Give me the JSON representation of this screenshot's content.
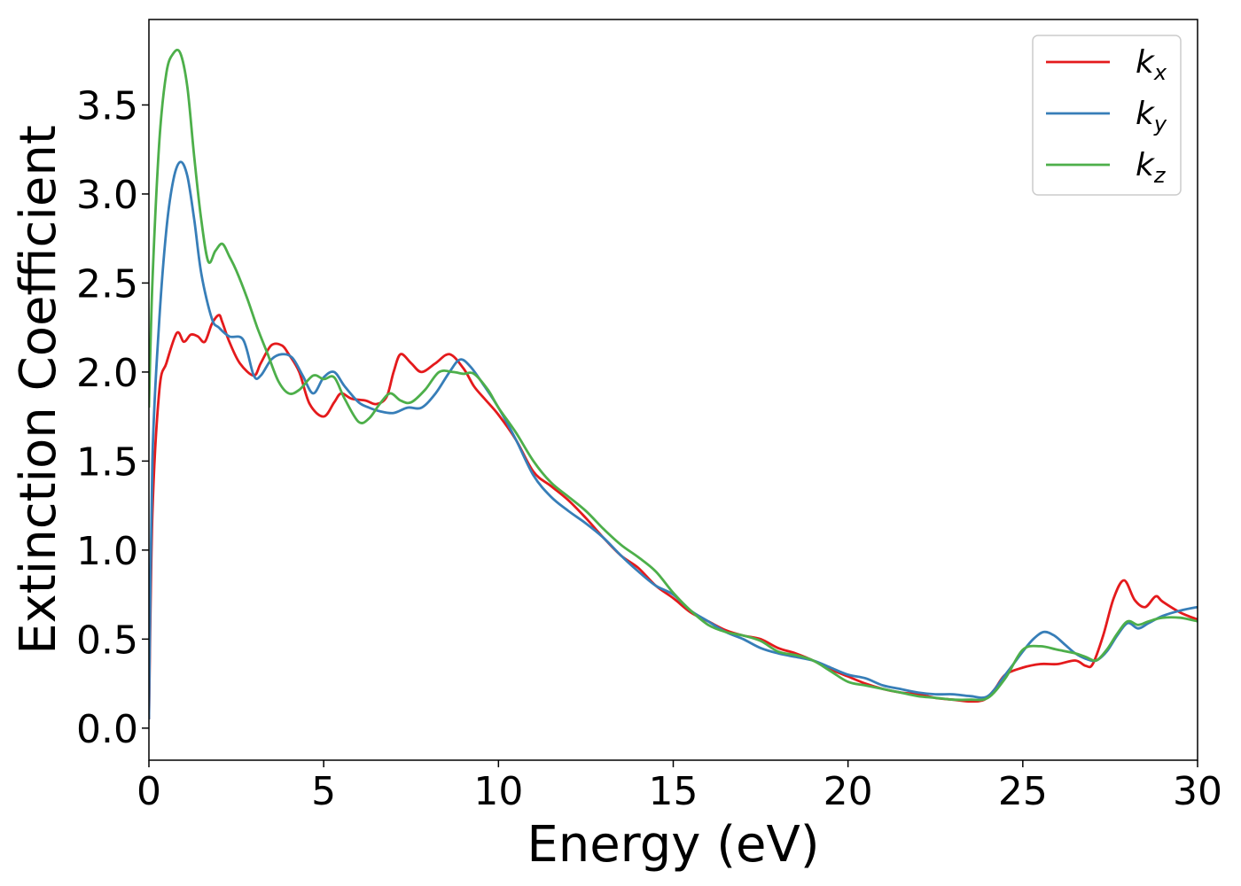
{
  "chart_data": {
    "type": "line",
    "xlabel": "Energy (eV)",
    "ylabel": "Extinction Coefficient",
    "xlim": [
      0,
      30
    ],
    "ylim": [
      -0.18,
      3.98
    ],
    "xticks": [
      0,
      5,
      10,
      15,
      20,
      25,
      30
    ],
    "xtick_labels": [
      "0",
      "5",
      "10",
      "15",
      "20",
      "25",
      "30"
    ],
    "yticks": [
      0.0,
      0.5,
      1.0,
      1.5,
      2.0,
      2.5,
      3.0,
      3.5
    ],
    "ytick_labels": [
      "0.0",
      "0.5",
      "1.0",
      "1.5",
      "2.0",
      "2.5",
      "3.0",
      "3.5"
    ],
    "grid": false,
    "legend_position": "top-right",
    "series": [
      {
        "name": "k",
        "subscript": "x",
        "color": "#e41a1c",
        "x": [
          0,
          0.1,
          0.3,
          0.5,
          0.8,
          1.0,
          1.2,
          1.4,
          1.6,
          1.8,
          2.0,
          2.1,
          2.3,
          2.6,
          3.0,
          3.2,
          3.5,
          3.8,
          4.0,
          4.3,
          4.6,
          5.0,
          5.3,
          5.5,
          5.8,
          6.2,
          6.5,
          6.8,
          7.0,
          7.2,
          7.5,
          7.8,
          8.2,
          8.6,
          9.0,
          9.3,
          9.6,
          10.0,
          10.5,
          11.0,
          11.5,
          12.0,
          12.5,
          13.0,
          13.5,
          14.0,
          14.5,
          15.0,
          15.5,
          16.0,
          16.5,
          17.0,
          17.5,
          18.0,
          18.5,
          19.0,
          19.5,
          20.0,
          20.5,
          21.0,
          21.5,
          22.0,
          22.5,
          23.0,
          23.5,
          23.9,
          24.2,
          24.5,
          25.0,
          25.5,
          26.0,
          26.5,
          26.8,
          27.0,
          27.3,
          27.6,
          27.9,
          28.2,
          28.5,
          28.8,
          29.0,
          29.5,
          30.0
        ],
        "values": [
          0.05,
          1.2,
          1.9,
          2.05,
          2.22,
          2.17,
          2.21,
          2.2,
          2.17,
          2.27,
          2.32,
          2.28,
          2.17,
          2.05,
          1.98,
          2.05,
          2.15,
          2.15,
          2.1,
          2.0,
          1.82,
          1.75,
          1.83,
          1.88,
          1.85,
          1.84,
          1.82,
          1.86,
          2.0,
          2.1,
          2.05,
          2.0,
          2.05,
          2.1,
          2.02,
          1.92,
          1.85,
          1.76,
          1.62,
          1.44,
          1.36,
          1.28,
          1.18,
          1.07,
          0.97,
          0.9,
          0.8,
          0.73,
          0.65,
          0.6,
          0.55,
          0.52,
          0.5,
          0.45,
          0.42,
          0.38,
          0.33,
          0.29,
          0.25,
          0.22,
          0.2,
          0.19,
          0.17,
          0.16,
          0.15,
          0.16,
          0.22,
          0.3,
          0.34,
          0.36,
          0.36,
          0.38,
          0.35,
          0.36,
          0.52,
          0.73,
          0.83,
          0.72,
          0.68,
          0.74,
          0.71,
          0.65,
          0.61
        ]
      },
      {
        "name": "k",
        "subscript": "y",
        "color": "#377eb8",
        "x": [
          0,
          0.1,
          0.3,
          0.5,
          0.7,
          0.9,
          1.1,
          1.3,
          1.5,
          1.8,
          2.0,
          2.3,
          2.7,
          3.0,
          3.2,
          3.5,
          3.8,
          4.1,
          4.4,
          4.7,
          5.0,
          5.3,
          5.6,
          6.0,
          6.3,
          6.6,
          7.0,
          7.4,
          7.8,
          8.2,
          8.6,
          8.9,
          9.2,
          9.6,
          10.0,
          10.5,
          11.0,
          11.5,
          12.0,
          12.5,
          13.0,
          13.5,
          14.0,
          14.5,
          15.0,
          15.5,
          16.0,
          16.5,
          17.0,
          17.5,
          18.0,
          18.5,
          19.0,
          19.5,
          20.0,
          20.5,
          21.0,
          21.5,
          22.0,
          22.5,
          23.0,
          23.5,
          24.0,
          24.5,
          25.0,
          25.3,
          25.6,
          25.9,
          26.2,
          26.5,
          26.8,
          27.1,
          27.4,
          27.7,
          28.0,
          28.3,
          28.6,
          29.0,
          29.5,
          30.0
        ],
        "values": [
          0.05,
          1.5,
          2.3,
          2.8,
          3.08,
          3.18,
          3.1,
          2.85,
          2.55,
          2.3,
          2.25,
          2.2,
          2.18,
          1.98,
          1.98,
          2.07,
          2.1,
          2.08,
          1.98,
          1.88,
          1.97,
          2.0,
          1.92,
          1.83,
          1.8,
          1.78,
          1.77,
          1.8,
          1.8,
          1.88,
          2.0,
          2.07,
          2.03,
          1.92,
          1.8,
          1.62,
          1.42,
          1.3,
          1.22,
          1.15,
          1.07,
          0.97,
          0.88,
          0.8,
          0.75,
          0.66,
          0.6,
          0.54,
          0.5,
          0.45,
          0.42,
          0.4,
          0.38,
          0.34,
          0.3,
          0.28,
          0.24,
          0.22,
          0.2,
          0.19,
          0.19,
          0.18,
          0.18,
          0.3,
          0.43,
          0.5,
          0.54,
          0.52,
          0.47,
          0.42,
          0.39,
          0.38,
          0.43,
          0.52,
          0.59,
          0.56,
          0.59,
          0.63,
          0.66,
          0.68
        ]
      },
      {
        "name": "k",
        "subscript": "z",
        "color": "#4daf4a",
        "x": [
          0,
          0.1,
          0.3,
          0.5,
          0.7,
          0.9,
          1.1,
          1.3,
          1.5,
          1.7,
          1.9,
          2.1,
          2.3,
          2.5,
          2.8,
          3.1,
          3.4,
          3.7,
          4.0,
          4.3,
          4.7,
          5.0,
          5.3,
          5.6,
          6.0,
          6.3,
          6.6,
          6.9,
          7.2,
          7.5,
          7.9,
          8.3,
          8.7,
          9.0,
          9.3,
          9.7,
          10.0,
          10.5,
          11.0,
          11.5,
          12.0,
          12.5,
          13.0,
          13.5,
          14.0,
          14.5,
          15.0,
          15.5,
          16.0,
          16.5,
          17.0,
          17.5,
          18.0,
          18.5,
          19.0,
          19.5,
          20.0,
          20.5,
          21.0,
          21.5,
          22.0,
          22.5,
          23.0,
          23.5,
          24.0,
          24.5,
          25.0,
          25.5,
          26.0,
          26.5,
          26.8,
          27.1,
          27.4,
          27.7,
          28.0,
          28.3,
          28.6,
          29.0,
          29.5,
          30.0
        ],
        "values": [
          1.8,
          2.5,
          3.3,
          3.68,
          3.79,
          3.79,
          3.6,
          3.2,
          2.85,
          2.62,
          2.68,
          2.72,
          2.65,
          2.57,
          2.42,
          2.25,
          2.1,
          1.95,
          1.88,
          1.9,
          1.98,
          1.96,
          1.97,
          1.85,
          1.72,
          1.74,
          1.82,
          1.88,
          1.84,
          1.83,
          1.9,
          2.0,
          2.0,
          1.99,
          1.99,
          1.9,
          1.8,
          1.66,
          1.5,
          1.38,
          1.3,
          1.22,
          1.12,
          1.03,
          0.96,
          0.88,
          0.76,
          0.66,
          0.58,
          0.54,
          0.52,
          0.49,
          0.43,
          0.41,
          0.38,
          0.32,
          0.26,
          0.24,
          0.22,
          0.2,
          0.18,
          0.17,
          0.16,
          0.16,
          0.17,
          0.28,
          0.44,
          0.46,
          0.44,
          0.42,
          0.4,
          0.38,
          0.44,
          0.53,
          0.6,
          0.58,
          0.6,
          0.62,
          0.62,
          0.6
        ]
      }
    ]
  }
}
